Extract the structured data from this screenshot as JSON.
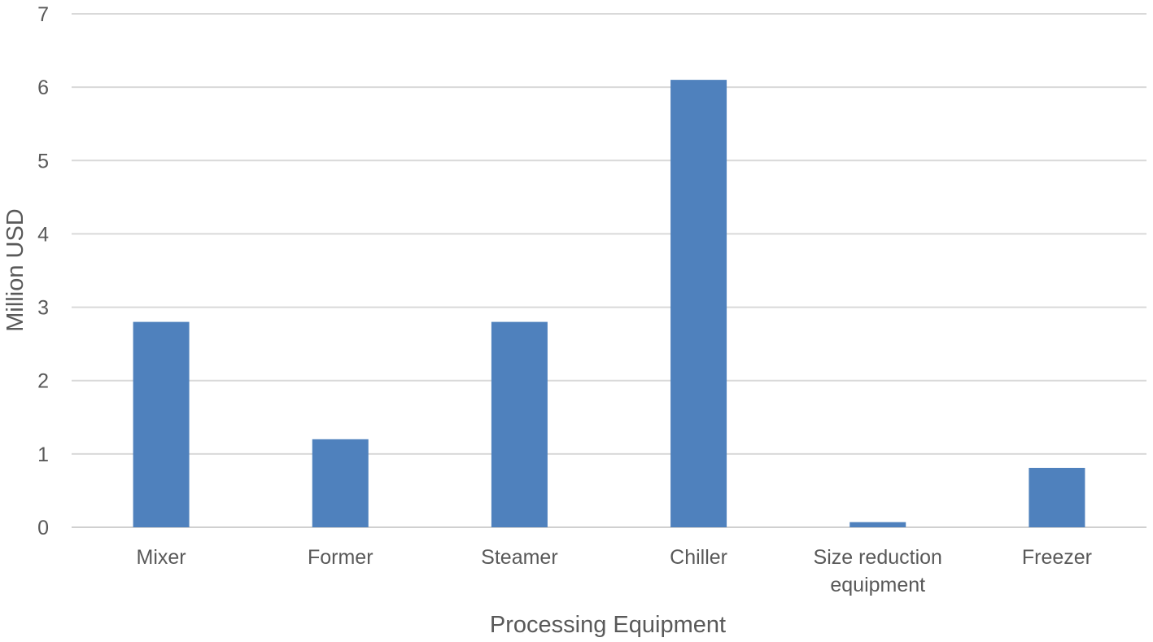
{
  "chart_data": {
    "type": "bar",
    "title": "",
    "xlabel": "Processing Equipment",
    "ylabel": "Million USD",
    "categories": [
      "Mixer",
      "Former",
      "Steamer",
      "Chiller",
      "Size reduction equipment",
      "Freezer"
    ],
    "category_lines": [
      [
        "Mixer"
      ],
      [
        "Former"
      ],
      [
        "Steamer"
      ],
      [
        "Chiller"
      ],
      [
        "Size reduction",
        "equipment"
      ],
      [
        "Freezer"
      ]
    ],
    "values": [
      2.8,
      1.2,
      2.8,
      6.1,
      0.07,
      0.81
    ],
    "ylim": [
      0,
      7
    ],
    "yticks": [
      "0",
      "1",
      "2",
      "3",
      "4",
      "5",
      "6",
      "7"
    ],
    "grid": true,
    "legend": "none",
    "colors": {
      "bar": "#4f81bd",
      "grid": "#d9d9d9",
      "axis": "#d0d0d0",
      "text": "#595959"
    }
  }
}
